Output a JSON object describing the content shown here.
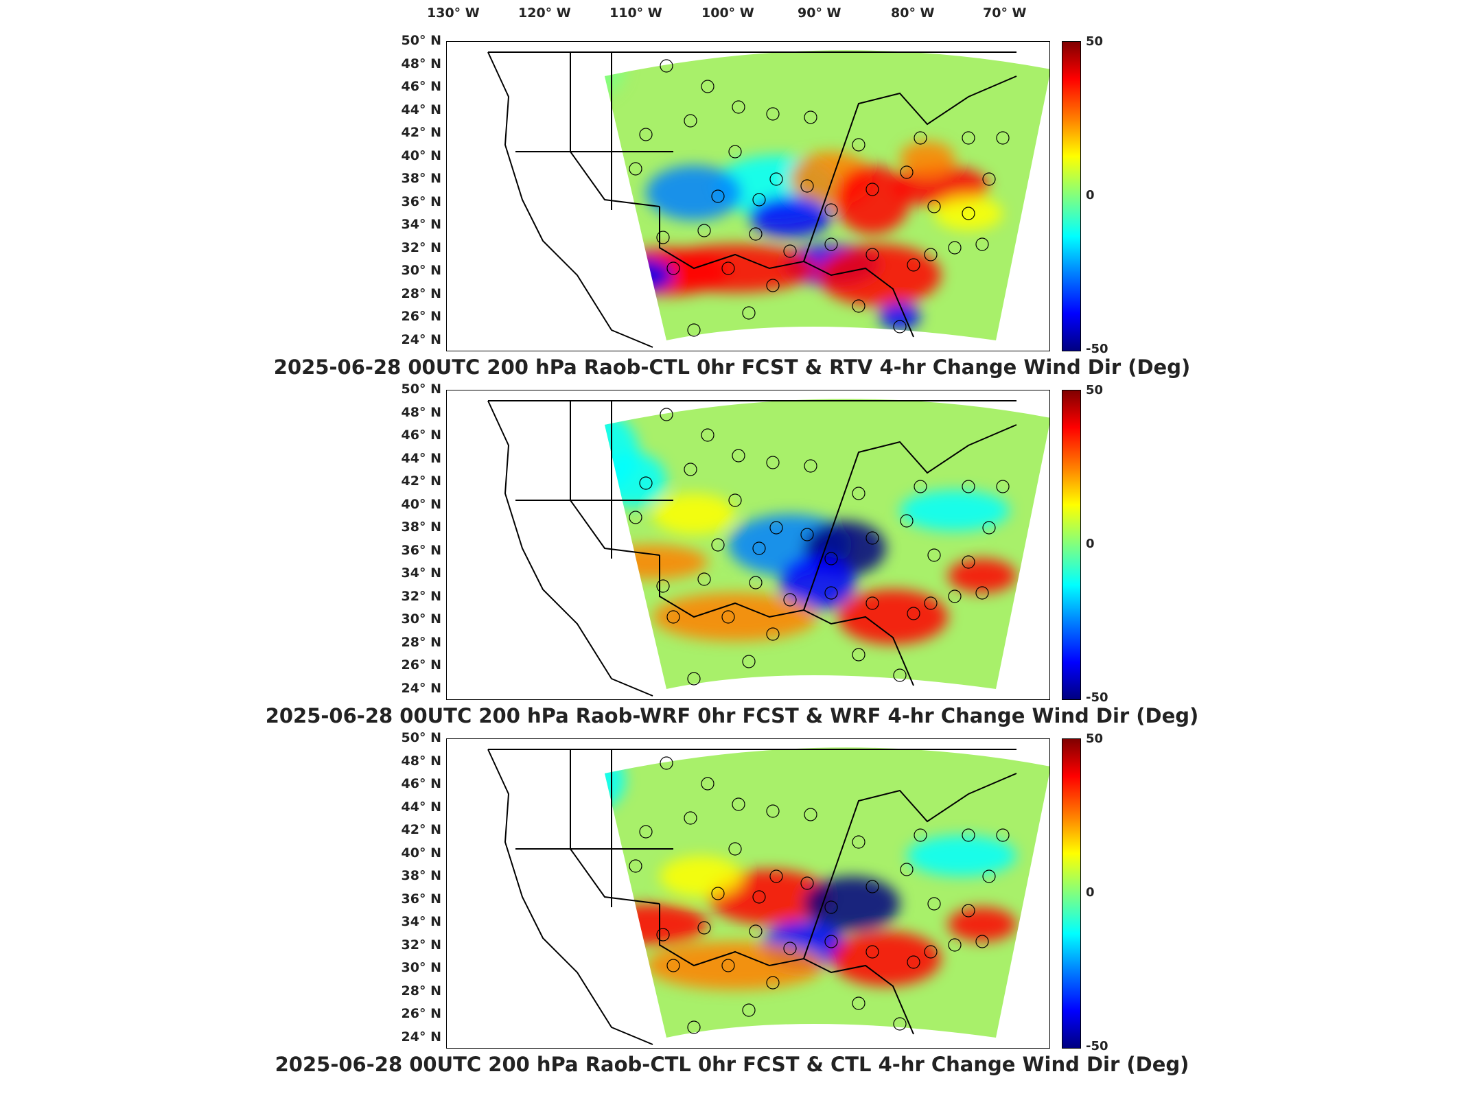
{
  "lon_labels": [
    "130° W",
    "120° W",
    "110° W",
    "100° W",
    "90° W",
    "80° W",
    "70° W"
  ],
  "lat_labels": [
    "50° N",
    "48° N",
    "46° N",
    "44° N",
    "42° N",
    "40° N",
    "38° N",
    "36° N",
    "34° N",
    "32° N",
    "30° N",
    "28° N",
    "26° N",
    "24° N"
  ],
  "colorbar": {
    "max": "50",
    "mid": "0",
    "min": "-50",
    "colors": [
      "#800000",
      "#ff0000",
      "#ff8000",
      "#ffff00",
      "#80ff80",
      "#00ffff",
      "#0080ff",
      "#0000ff",
      "#000080"
    ]
  },
  "panels": [
    {
      "title": "2025-06-28 00UTC 200 hPa Raob-CTL 0hr FCST & RTV 4-hr Change Wind Dir (Deg)"
    },
    {
      "title": "2025-06-28 00UTC 200 hPa Raob-WRF 0hr FCST & WRF 4-hr Change Wind Dir (Deg)"
    },
    {
      "title": "2025-06-28 00UTC 200 hPa Raob-CTL 0hr FCST & CTL 4-hr Change Wind Dir (Deg)"
    }
  ],
  "legend": {}
}
